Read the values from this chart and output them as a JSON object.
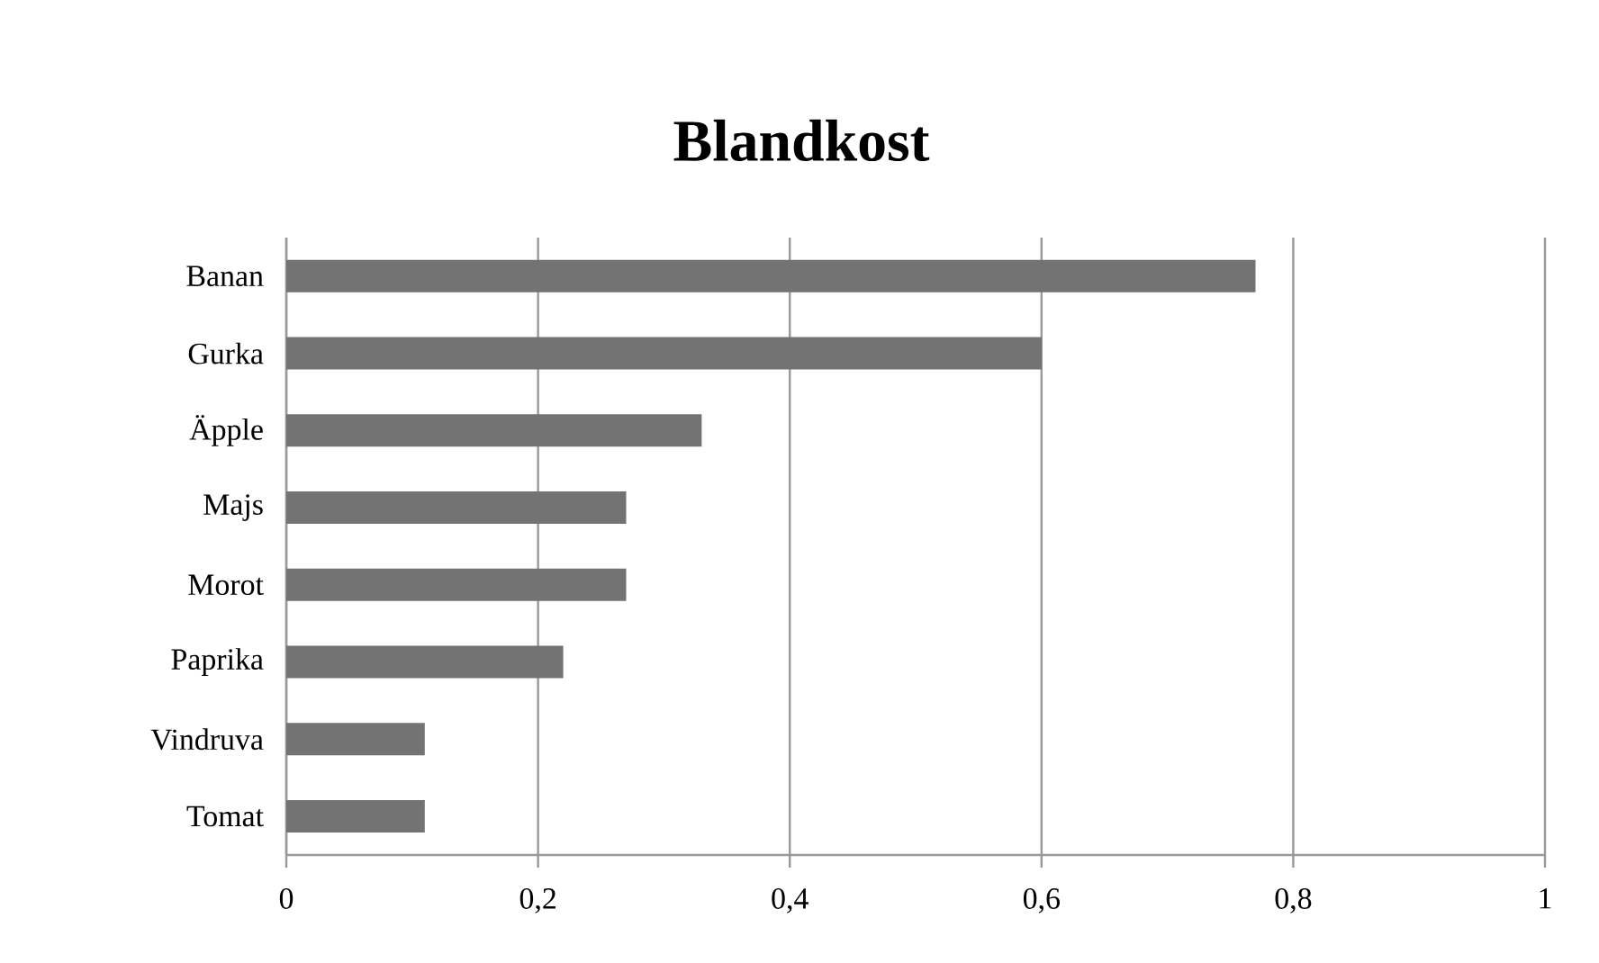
{
  "chart_data": {
    "type": "bar",
    "orientation": "horizontal",
    "title": "Blandkost",
    "categories": [
      "Banan",
      "Gurka",
      "Äpple",
      "Majs",
      "Morot",
      "Paprika",
      "Vindruva",
      "Tomat"
    ],
    "values": [
      0.77,
      0.6,
      0.33,
      0.27,
      0.27,
      0.22,
      0.11,
      0.11
    ],
    "color": "#737373",
    "xlim": [
      0,
      1
    ],
    "xticks": [
      0,
      {
        "value": 0.2,
        "label": "0,2"
      },
      {
        "value": 0.4,
        "label": "0,4"
      },
      {
        "value": 0.6,
        "label": "0,6"
      },
      {
        "value": 0.8,
        "label": "0,8"
      },
      1
    ],
    "grid": "x"
  }
}
